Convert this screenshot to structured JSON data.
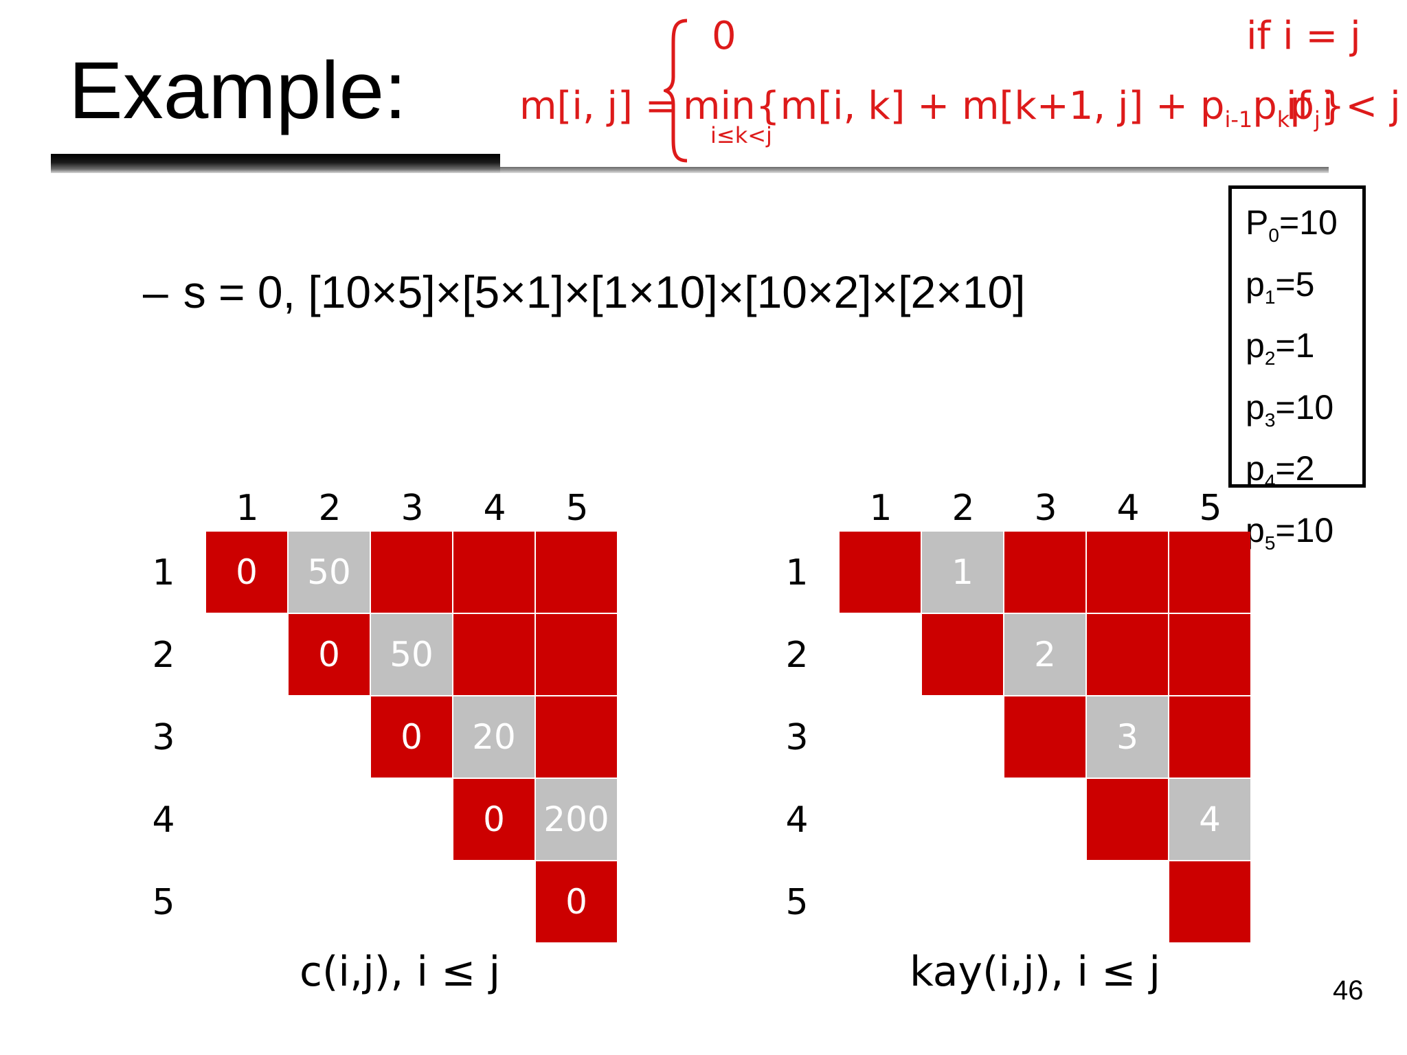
{
  "title": "Example:",
  "formula": {
    "lhs": "m[i, j] =",
    "case1_value": "0",
    "case1_condition": "if i = j",
    "min_label": "min",
    "min_subscript": "i≤k<j",
    "expr_main": "{m[i, k] + m[k+1, j] + p",
    "expr_sub1": "i-1",
    "expr_p2": "p",
    "expr_sub2": "k",
    "expr_p3": "p",
    "expr_sub3": "j",
    "expr_close": "}",
    "case2_condition": "if i < j"
  },
  "bullet": {
    "dash": "–",
    "text": "s = 0, [10×5]×[5×1]×[1×10]×[10×2]×[2×10]"
  },
  "p_values": [
    {
      "name": "P",
      "sub": "0",
      "value": "=10"
    },
    {
      "name": "p",
      "sub": "1",
      "value": "=5"
    },
    {
      "name": "p",
      "sub": "2",
      "value": "=1"
    },
    {
      "name": "p",
      "sub": "3",
      "value": "=10"
    },
    {
      "name": "p",
      "sub": "4",
      "value": "=2"
    },
    {
      "name": "p",
      "sub": "5",
      "value": "=10"
    }
  ],
  "tables": [
    {
      "id": "c",
      "caption": "c(i,j), i ≤ j",
      "col_labels": [
        "1",
        "2",
        "3",
        "4",
        "5"
      ],
      "row_labels": [
        "1",
        "2",
        "3",
        "4",
        "5"
      ],
      "cells": [
        [
          {
            "text": "0",
            "color": "red"
          },
          {
            "text": "50",
            "color": "gray"
          },
          {
            "text": "",
            "color": "red"
          },
          {
            "text": "",
            "color": "red"
          },
          {
            "text": "",
            "color": "red"
          }
        ],
        [
          null,
          {
            "text": "0",
            "color": "red"
          },
          {
            "text": "50",
            "color": "gray"
          },
          {
            "text": "",
            "color": "red"
          },
          {
            "text": "",
            "color": "red"
          }
        ],
        [
          null,
          null,
          {
            "text": "0",
            "color": "red"
          },
          {
            "text": "20",
            "color": "gray"
          },
          {
            "text": "",
            "color": "red"
          }
        ],
        [
          null,
          null,
          null,
          {
            "text": "0",
            "color": "red"
          },
          {
            "text": "200",
            "color": "gray"
          }
        ],
        [
          null,
          null,
          null,
          null,
          {
            "text": "0",
            "color": "red"
          }
        ]
      ]
    },
    {
      "id": "kay",
      "caption": "kay(i,j), i ≤ j",
      "col_labels": [
        "1",
        "2",
        "3",
        "4",
        "5"
      ],
      "row_labels": [
        "1",
        "2",
        "3",
        "4",
        "5"
      ],
      "cells": [
        [
          {
            "text": "",
            "color": "red"
          },
          {
            "text": "1",
            "color": "gray"
          },
          {
            "text": "",
            "color": "red"
          },
          {
            "text": "",
            "color": "red"
          },
          {
            "text": "",
            "color": "red"
          }
        ],
        [
          null,
          {
            "text": "",
            "color": "red"
          },
          {
            "text": "2",
            "color": "gray"
          },
          {
            "text": "",
            "color": "red"
          },
          {
            "text": "",
            "color": "red"
          }
        ],
        [
          null,
          null,
          {
            "text": "",
            "color": "red"
          },
          {
            "text": "3",
            "color": "gray"
          },
          {
            "text": "",
            "color": "red"
          }
        ],
        [
          null,
          null,
          null,
          {
            "text": "",
            "color": "red"
          },
          {
            "text": "4",
            "color": "gray"
          }
        ],
        [
          null,
          null,
          null,
          null,
          {
            "text": "",
            "color": "red"
          }
        ]
      ]
    }
  ],
  "colors": {
    "red": "#cc0000",
    "gray": "#c0c0c0",
    "formula": "#dd1a1a"
  },
  "page_number": "46"
}
